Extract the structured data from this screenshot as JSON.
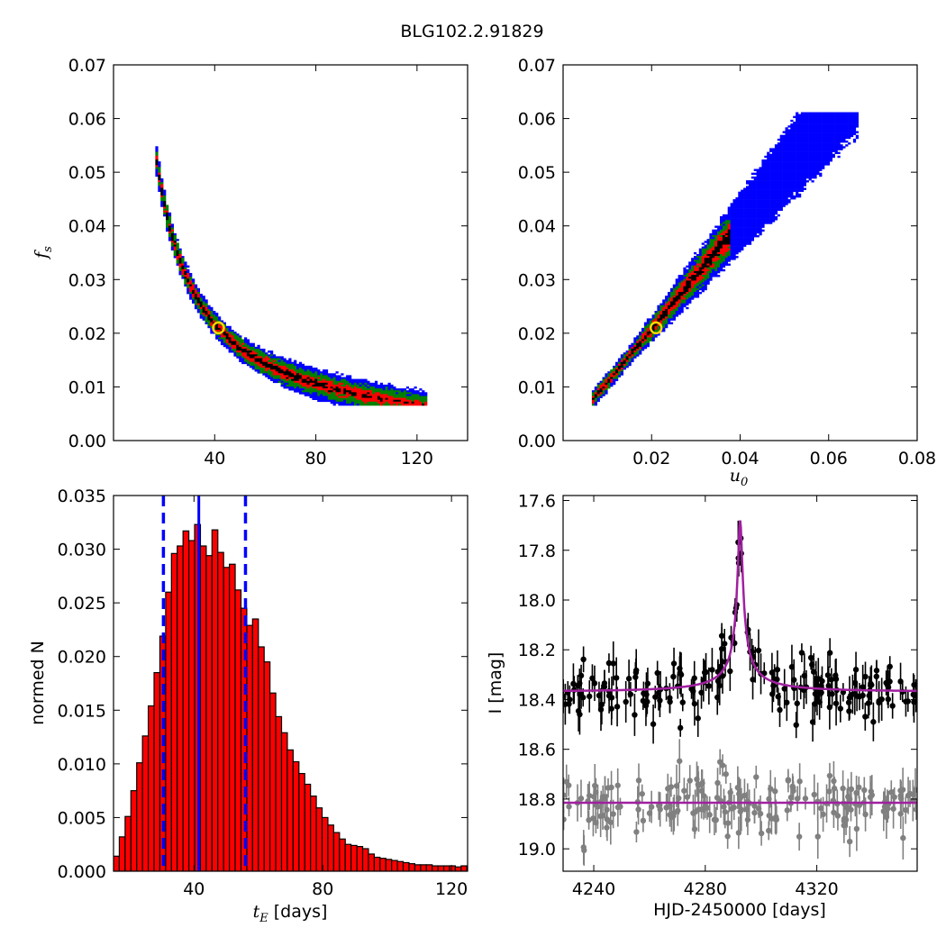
{
  "figure": {
    "title": "BLG102.2.91829"
  },
  "colors": {
    "outer": "#0000ff",
    "mid": "#008000",
    "inner": "#ff0000",
    "core": "#000000",
    "marker": "#ffd700",
    "hist_bar": "#ff0000",
    "hist_line": "#0000ff",
    "model": "#a020a0",
    "data": "#000000",
    "residual": "#808080"
  },
  "chart_data": [
    {
      "type": "heatmap",
      "panel": "tE-fs",
      "xlabel": "",
      "ylabel": "f_s",
      "ylabel_sym": "f",
      "ylabel_sub": "s",
      "xlim": [
        0,
        140
      ],
      "ylim": [
        0.0,
        0.07
      ],
      "xticks": [
        40,
        80,
        120
      ],
      "xtick_labels": [
        "40",
        "80",
        "120"
      ],
      "yticks": [
        0.0,
        0.01,
        0.02,
        0.03,
        0.04,
        0.05,
        0.06,
        0.07
      ],
      "ytick_labels": [
        "0.00",
        "0.01",
        "0.02",
        "0.03",
        "0.04",
        "0.05",
        "0.06",
        "0.07"
      ],
      "levels": [
        "outer",
        "mid",
        "inner",
        "core"
      ],
      "best_fit": {
        "x": 41.5,
        "y": 0.021
      }
    },
    {
      "type": "heatmap",
      "panel": "u0-fs",
      "xlabel": "u_0",
      "xlabel_sym": "u",
      "xlabel_sub": "0",
      "ylabel": "",
      "xlim": [
        0.0,
        0.08
      ],
      "ylim": [
        0.0,
        0.07
      ],
      "xticks": [
        0.02,
        0.04,
        0.06,
        0.08
      ],
      "xtick_labels": [
        "0.02",
        "0.04",
        "0.06",
        "0.08"
      ],
      "yticks": [
        0.0,
        0.01,
        0.02,
        0.03,
        0.04,
        0.05,
        0.06,
        0.07
      ],
      "ytick_labels": [
        "0.00",
        "0.01",
        "0.02",
        "0.03",
        "0.04",
        "0.05",
        "0.06",
        "0.07"
      ],
      "levels": [
        "outer",
        "mid",
        "inner",
        "core"
      ],
      "best_fit": {
        "x": 0.021,
        "y": 0.021
      }
    },
    {
      "type": "bar",
      "panel": "tE-histogram",
      "xlabel": "t_E  [days]",
      "xlabel_sym": "t",
      "xlabel_sub": "E",
      "xlabel_rest": " [days]",
      "ylabel": "normed N",
      "xlim": [
        15,
        125
      ],
      "ylim": [
        0.0,
        0.035
      ],
      "xticks": [
        40,
        80,
        120
      ],
      "xtick_labels": [
        "40",
        "80",
        "120"
      ],
      "yticks": [
        0.0,
        0.005,
        0.01,
        0.015,
        0.02,
        0.025,
        0.03,
        0.035
      ],
      "ytick_labels": [
        "0.000",
        "0.005",
        "0.010",
        "0.015",
        "0.020",
        "0.025",
        "0.030",
        "0.035"
      ],
      "bin_start": 15,
      "bin_width": 1.8,
      "values": [
        0.0014,
        0.0032,
        0.0051,
        0.0075,
        0.0101,
        0.0126,
        0.0154,
        0.0185,
        0.0219,
        0.026,
        0.0296,
        0.0303,
        0.0317,
        0.0308,
        0.0323,
        0.0303,
        0.0294,
        0.0318,
        0.0297,
        0.0283,
        0.0286,
        0.0262,
        0.0245,
        0.0229,
        0.0235,
        0.0209,
        0.0195,
        0.0166,
        0.0144,
        0.0129,
        0.0113,
        0.0102,
        0.0091,
        0.0081,
        0.007,
        0.0059,
        0.005,
        0.0043,
        0.0036,
        0.003,
        0.0025,
        0.0024,
        0.0023,
        0.0021,
        0.0016,
        0.0013,
        0.0012,
        0.0011,
        0.001,
        0.0009,
        0.0008,
        0.0007,
        0.0006,
        0.0006,
        0.0006,
        0.0005,
        0.0005,
        0.0005,
        0.0005,
        0.0004,
        0.0005,
        0.0004
      ],
      "vlines": {
        "median": 41.5,
        "lower": 30.5,
        "upper": 56.0
      }
    },
    {
      "type": "scatter",
      "panel": "light-curve",
      "xlabel": "HJD-2450000 [days]",
      "ylabel": "I [mag]",
      "xlim": [
        4229,
        4356
      ],
      "ylim": [
        19.09,
        17.58
      ],
      "xticks": [
        4240,
        4280,
        4320
      ],
      "xtick_labels": [
        "4240",
        "4280",
        "4320"
      ],
      "yticks": [
        17.6,
        17.8,
        18.0,
        18.2,
        18.4,
        18.6,
        18.8,
        19.0
      ],
      "ytick_labels": [
        "17.6",
        "17.8",
        "18.0",
        "18.2",
        "18.4",
        "18.6",
        "18.8",
        "19.0"
      ],
      "model": {
        "t0": 4292.5,
        "u0": 0.021,
        "tE": 41.5,
        "baseline": 18.365,
        "peak": 17.68
      },
      "residual_baseline": 18.815,
      "series": [
        {
          "name": "",
          "role": "data",
          "x_range": [
            4229,
            4356
          ],
          "y_scatter": 0.06
        },
        {
          "name": "",
          "role": "residual",
          "x_range": [
            4229,
            4356
          ],
          "y_scatter": 0.06
        }
      ]
    }
  ]
}
